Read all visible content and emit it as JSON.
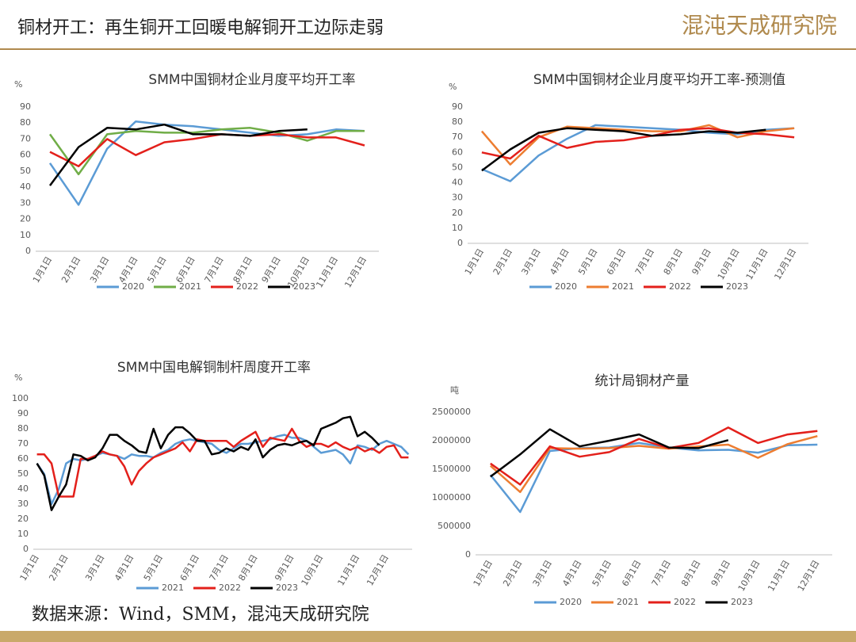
{
  "header": {
    "title": "铜材开工：再生铜开工回暖电解铜开工边际走弱",
    "logo": "混沌天成研究院"
  },
  "footer": {
    "source": "数据来源：Wind，SMM，混沌天成研究院"
  },
  "chart_data": [
    {
      "type": "line",
      "title": "SMM中国铜材企业月度平均开工率",
      "y_label": "%",
      "categories": [
        "1月1日",
        "2月1日",
        "3月1日",
        "4月1日",
        "5月1日",
        "6月1日",
        "7月1日",
        "8月1日",
        "9月1日",
        "10月1日",
        "11月1日",
        "12月1日"
      ],
      "ylim": [
        0,
        90
      ],
      "yticks": [
        0,
        10,
        20,
        30,
        40,
        50,
        60,
        70,
        80,
        90
      ],
      "grid": false,
      "series": [
        {
          "name": "2020",
          "color": "#5b9bd5",
          "values": [
            55,
            29,
            64,
            81,
            79,
            78,
            76,
            74,
            72,
            73,
            76,
            75
          ]
        },
        {
          "name": "2021",
          "color": "#70ad47",
          "values": [
            73,
            48,
            73,
            75,
            74,
            74,
            76,
            77,
            74,
            69,
            75,
            75
          ]
        },
        {
          "name": "2022",
          "color": "#e3201b",
          "values": [
            62,
            53,
            70,
            60,
            68,
            70,
            73,
            72,
            73,
            71,
            71,
            66
          ]
        },
        {
          "name": "2023",
          "color": "#000000",
          "values": [
            41,
            65,
            77,
            76,
            79,
            73,
            73,
            72,
            75,
            76,
            null,
            null
          ]
        }
      ]
    },
    {
      "type": "line",
      "title": "SMM中国铜材企业月度平均开工率-预测值",
      "y_label": "%",
      "categories": [
        "1月1日",
        "2月1日",
        "3月1日",
        "4月1日",
        "5月1日",
        "6月1日",
        "7月1日",
        "8月1日",
        "9月1日",
        "10月1日",
        "11月1日",
        "12月1日"
      ],
      "ylim": [
        0,
        90
      ],
      "yticks": [
        0,
        10,
        20,
        30,
        40,
        50,
        60,
        70,
        80,
        90
      ],
      "grid": false,
      "series": [
        {
          "name": "2020",
          "color": "#5b9bd5",
          "values": [
            49,
            41,
            58,
            69,
            78,
            77,
            76,
            75,
            73,
            72,
            75,
            76
          ]
        },
        {
          "name": "2021",
          "color": "#ed7d31",
          "values": [
            74,
            52,
            70,
            77,
            76,
            75,
            74,
            74,
            78,
            70,
            74,
            76
          ]
        },
        {
          "name": "2022",
          "color": "#e3201b",
          "values": [
            60,
            56,
            71,
            63,
            67,
            68,
            71,
            75,
            76,
            73,
            72,
            70
          ]
        },
        {
          "name": "2023",
          "color": "#000000",
          "values": [
            48,
            62,
            73,
            76,
            75,
            74,
            71,
            72,
            74,
            73,
            75,
            null
          ]
        }
      ]
    },
    {
      "type": "line",
      "title": "SMM中国电解铜制杆周度开工率",
      "y_label": "%",
      "categories": [
        "1月1日",
        null,
        null,
        null,
        "2月1日",
        null,
        null,
        null,
        null,
        "3月1日",
        null,
        null,
        null,
        "4月1日",
        null,
        null,
        null,
        "5月1日",
        null,
        null,
        null,
        null,
        "6月1日",
        null,
        null,
        null,
        "7月1日",
        null,
        null,
        null,
        "8月1日",
        null,
        null,
        null,
        null,
        "9月1日",
        null,
        null,
        null,
        "10月1日",
        null,
        null,
        null,
        null,
        "11月1日",
        null,
        null,
        null,
        "12月1日",
        null,
        null,
        null
      ],
      "ylim": [
        0,
        100
      ],
      "yticks": [
        0,
        10,
        20,
        30,
        40,
        50,
        60,
        70,
        80,
        90,
        100
      ],
      "grid": false,
      "series": [
        {
          "name": "2021",
          "color": "#5b9bd5",
          "values": [
            57,
            50,
            30,
            40,
            57,
            60,
            59,
            60,
            62,
            64,
            63,
            62,
            60,
            63,
            62,
            62,
            61,
            64,
            66,
            70,
            72,
            73,
            72,
            71,
            70,
            66,
            64,
            67,
            70,
            70,
            71,
            72,
            73,
            75,
            76,
            74,
            74,
            72,
            68,
            64,
            65,
            66,
            63,
            57,
            69,
            68,
            66,
            70,
            72,
            70,
            68,
            63
          ]
        },
        {
          "name": "2022",
          "color": "#e3201b",
          "values": [
            63,
            63,
            57,
            35,
            35,
            35,
            60,
            60,
            62,
            65,
            63,
            62,
            55,
            43,
            52,
            57,
            61,
            63,
            65,
            67,
            71,
            65,
            73,
            72,
            72,
            72,
            72,
            68,
            72,
            75,
            78,
            68,
            74,
            73,
            72,
            80,
            72,
            68,
            70,
            70,
            68,
            71,
            68,
            66,
            68,
            65,
            67,
            64,
            68,
            69,
            61,
            61
          ]
        },
        {
          "name": "2023",
          "color": "#000000",
          "values": [
            57,
            49,
            26,
            35,
            43,
            63,
            62,
            59,
            61,
            67,
            76,
            76,
            72,
            69,
            65,
            64,
            80,
            67,
            76,
            81,
            81,
            77,
            72,
            72,
            63,
            64,
            67,
            65,
            68,
            66,
            73,
            61,
            66,
            69,
            70,
            69,
            71,
            72,
            69,
            80,
            82,
            84,
            87,
            88,
            75,
            78,
            74,
            69,
            null,
            null,
            null,
            null
          ]
        }
      ]
    },
    {
      "type": "line",
      "title": "统计局铜材产量",
      "y_label": "吨",
      "categories": [
        "1月1日",
        "2月1日",
        "3月1日",
        "4月1日",
        "5月1日",
        "6月1日",
        "7月1日",
        "8月1日",
        "9月1日",
        "10月1日",
        "11月1日",
        "12月1日"
      ],
      "ylim": [
        0,
        2500000
      ],
      "yticks": [
        0,
        500000,
        1000000,
        1500000,
        2000000,
        2500000
      ],
      "grid": false,
      "series": [
        {
          "name": "2020",
          "color": "#5b9bd5",
          "values": [
            1400000,
            750000,
            1820000,
            1870000,
            1880000,
            1960000,
            1880000,
            1830000,
            1840000,
            1790000,
            1920000,
            1930000
          ]
        },
        {
          "name": "2021",
          "color": "#ed7d31",
          "values": [
            1560000,
            1100000,
            1870000,
            1860000,
            1870000,
            1910000,
            1860000,
            1900000,
            1930000,
            1700000,
            1940000,
            2080000
          ]
        },
        {
          "name": "2022",
          "color": "#e3201b",
          "values": [
            1600000,
            1230000,
            1900000,
            1720000,
            1800000,
            2030000,
            1870000,
            1960000,
            2230000,
            1960000,
            2110000,
            2170000
          ]
        },
        {
          "name": "2023",
          "color": "#000000",
          "values": [
            1370000,
            1760000,
            2200000,
            1900000,
            2000000,
            2110000,
            1880000,
            1870000,
            2010000,
            null,
            null,
            null
          ]
        }
      ]
    }
  ]
}
